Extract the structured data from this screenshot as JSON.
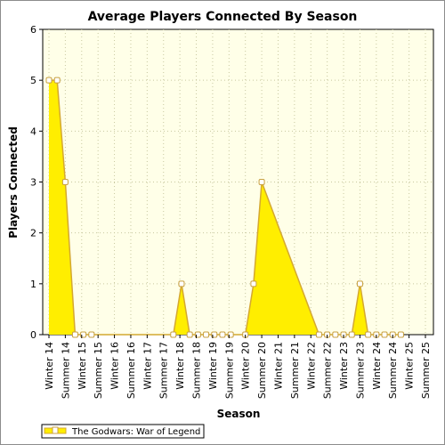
{
  "chart_data": {
    "type": "area",
    "title": "Average Players Connected By Season",
    "xlabel": "Season",
    "ylabel": "Players Connected",
    "ylim": [
      0,
      6
    ],
    "yticks": [
      0,
      1,
      2,
      3,
      4,
      5,
      6
    ],
    "grid": true,
    "legend_position": "bottom-left",
    "colors": {
      "fill": "#ffee00",
      "line": "#d4a830",
      "marker_fill": "#ffffff",
      "marker_stroke": "#c8a040",
      "plot_bg": "#ffffe8",
      "grid": "#c8c8a0"
    },
    "categories": [
      "Winter 14",
      "Summer 14",
      "Winter 15",
      "Summer 15",
      "Winter 16",
      "Summer 16",
      "Winter 17",
      "Summer 17",
      "Winter 18",
      "Summer 18",
      "Winter 19",
      "Summer 19",
      "Winter 20",
      "Summer 20",
      "Winter 21",
      "Summer 21",
      "Winter 22",
      "Summer 22",
      "Winter 23",
      "Summer 23",
      "Winter 24",
      "Summer 24",
      "Winter 25",
      "Summer 25"
    ],
    "series": [
      {
        "name": "The Godwars: War of Legend",
        "points": [
          {
            "pos": 0.0,
            "value": 5
          },
          {
            "pos": 0.5,
            "value": 5
          },
          {
            "pos": 1.0,
            "value": 3
          },
          {
            "pos": 1.6,
            "value": 0
          },
          {
            "pos": 2.1,
            "value": 0
          },
          {
            "pos": 2.6,
            "value": 0
          },
          {
            "pos": 7.6,
            "value": 0
          },
          {
            "pos": 8.1,
            "value": 1
          },
          {
            "pos": 8.6,
            "value": 0
          },
          {
            "pos": 9.1,
            "value": 0
          },
          {
            "pos": 9.6,
            "value": 0
          },
          {
            "pos": 10.1,
            "value": 0
          },
          {
            "pos": 10.6,
            "value": 0
          },
          {
            "pos": 11.1,
            "value": 0
          },
          {
            "pos": 12.0,
            "value": 0
          },
          {
            "pos": 12.5,
            "value": 1
          },
          {
            "pos": 13.0,
            "value": 3
          },
          {
            "pos": 16.5,
            "value": 0
          },
          {
            "pos": 17.0,
            "value": 0
          },
          {
            "pos": 17.5,
            "value": 0
          },
          {
            "pos": 18.0,
            "value": 0
          },
          {
            "pos": 18.5,
            "value": 0
          },
          {
            "pos": 19.0,
            "value": 1
          },
          {
            "pos": 19.5,
            "value": 0
          },
          {
            "pos": 20.0,
            "value": 0
          },
          {
            "pos": 20.5,
            "value": 0
          },
          {
            "pos": 21.0,
            "value": 0
          },
          {
            "pos": 21.5,
            "value": 0
          }
        ]
      }
    ]
  }
}
